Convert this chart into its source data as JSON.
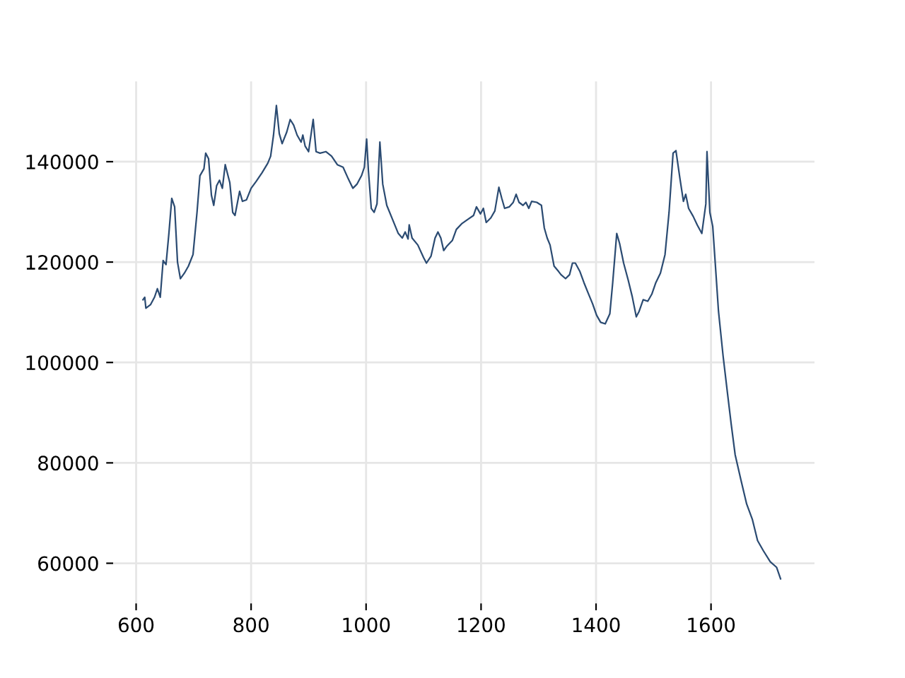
{
  "chart_data": {
    "type": "line",
    "xlim": [
      560,
      1780
    ],
    "ylim": [
      52000,
      156000
    ],
    "xticks": [
      600,
      800,
      1000,
      1200,
      1400,
      1600
    ],
    "yticks": [
      60000,
      80000,
      100000,
      120000,
      140000
    ],
    "grid": true,
    "marker": "none",
    "line_style": "solid",
    "series": [
      {
        "color": "#2b4b72",
        "x": [
          612,
          615,
          617,
          625,
          632,
          637,
          642,
          647,
          652,
          657,
          662,
          667,
          672,
          677,
          684,
          691,
          699,
          706,
          711,
          718,
          721,
          726,
          731,
          735,
          740,
          745,
          750,
          755,
          763,
          768,
          772,
          780,
          785,
          792,
          800,
          809,
          819,
          829,
          834,
          839,
          844,
          849,
          854,
          862,
          868,
          874,
          880,
          887,
          890,
          894,
          900,
          908,
          913,
          920,
          930,
          940,
          950,
          960,
          969,
          977,
          984,
          992,
          997,
          1001,
          1004,
          1009,
          1014,
          1019,
          1024,
          1029,
          1036,
          1046,
          1056,
          1063,
          1068,
          1073,
          1075,
          1080,
          1090,
          1100,
          1105,
          1113,
          1120,
          1125,
          1130,
          1135,
          1140,
          1150,
          1157,
          1167,
          1177,
          1187,
          1192,
          1199,
          1204,
          1209,
          1217,
          1224,
          1231,
          1236,
          1241,
          1249,
          1256,
          1261,
          1266,
          1273,
          1278,
          1283,
          1288,
          1297,
          1305,
          1310,
          1315,
          1320,
          1327,
          1335,
          1339,
          1347,
          1354,
          1359,
          1364,
          1372,
          1379,
          1386,
          1394,
          1401,
          1408,
          1416,
          1424,
          1429,
          1436,
          1441,
          1448,
          1456,
          1463,
          1470,
          1475,
          1482,
          1490,
          1497,
          1504,
          1512,
          1520,
          1527,
          1534,
          1539,
          1546,
          1552,
          1556,
          1561,
          1569,
          1576,
          1584,
          1591,
          1593,
          1598,
          1603,
          1608,
          1613,
          1621,
          1628,
          1635,
          1642,
          1652,
          1662,
          1672,
          1681,
          1691,
          1703,
          1714,
          1721
        ],
        "values": [
          112500,
          113000,
          110800,
          111500,
          113000,
          114700,
          113000,
          120300,
          119500,
          125700,
          132700,
          131000,
          120000,
          116700,
          117800,
          119200,
          121500,
          130000,
          137200,
          138600,
          141700,
          140600,
          133300,
          131300,
          135200,
          136300,
          134700,
          139400,
          135800,
          129900,
          129300,
          134100,
          132100,
          132400,
          134700,
          136100,
          137800,
          139700,
          141100,
          145300,
          151200,
          145600,
          143600,
          145900,
          148400,
          147300,
          145300,
          143900,
          145300,
          143100,
          142000,
          148400,
          142000,
          141700,
          142000,
          141100,
          139400,
          138900,
          136600,
          134700,
          135500,
          137200,
          138900,
          144500,
          138300,
          130700,
          129900,
          131600,
          143900,
          135500,
          131300,
          128500,
          125700,
          124800,
          126000,
          124600,
          127400,
          124800,
          123400,
          120900,
          119800,
          121200,
          124800,
          126000,
          124800,
          122300,
          123100,
          124300,
          126500,
          127700,
          128500,
          129300,
          131000,
          129600,
          130700,
          127900,
          128800,
          130200,
          134900,
          132700,
          130700,
          131000,
          131900,
          133500,
          131900,
          131300,
          131900,
          130700,
          132100,
          131900,
          131300,
          126800,
          124800,
          123400,
          119200,
          118100,
          117500,
          116700,
          117500,
          119800,
          119800,
          118100,
          115900,
          113900,
          111700,
          109400,
          108000,
          107700,
          109700,
          115900,
          125700,
          123700,
          119800,
          116400,
          113100,
          109100,
          110200,
          112500,
          112200,
          113600,
          115900,
          117800,
          121500,
          129900,
          141700,
          142200,
          136600,
          132100,
          133500,
          130700,
          129100,
          127400,
          125700,
          131600,
          142000,
          129900,
          127100,
          118700,
          110200,
          101300,
          94500,
          87800,
          81600,
          76600,
          71800,
          68700,
          64500,
          62500,
          60300,
          59200,
          56900
        ]
      }
    ]
  }
}
